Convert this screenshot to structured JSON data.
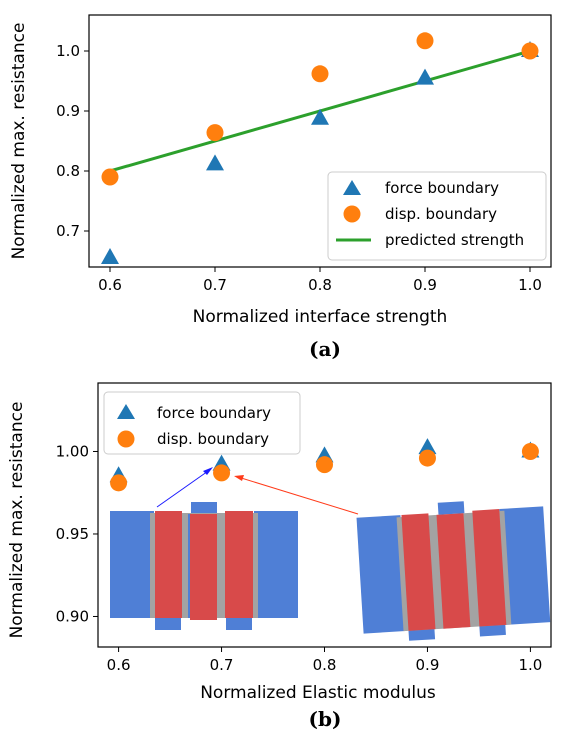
{
  "colors": {
    "force": "#1f77b4",
    "disp": "#ff7f0e",
    "line": "#2ca02c",
    "block_blue": "#4f7fd6",
    "block_red": "#d84a4a",
    "block_gray": "#a3a3a3",
    "arrow_blue": "#1a1aff",
    "arrow_red": "#ff3b1a"
  },
  "chart_data": [
    {
      "type": "scatter",
      "panel_label": "(a)",
      "xlabel": "Normalized interface strength",
      "ylabel": "Normalized max. resistance",
      "xlim": [
        0.58,
        1.02
      ],
      "ylim": [
        0.64,
        1.06
      ],
      "xticks": [
        "0.6",
        "0.7",
        "0.8",
        "0.9",
        "1.0"
      ],
      "xtick_values": [
        0.6,
        0.7,
        0.8,
        0.9,
        1.0
      ],
      "yticks": [
        "0.7",
        "0.8",
        "0.9",
        "1.0"
      ],
      "ytick_values": [
        0.7,
        0.8,
        0.9,
        1.0
      ],
      "legend_position": "lower-right",
      "series": [
        {
          "name": "force boundary",
          "marker": "triangle",
          "x": [
            0.6,
            0.7,
            0.8,
            0.9,
            1.0
          ],
          "y": [
            0.655,
            0.811,
            0.887,
            0.954,
            1.0
          ]
        },
        {
          "name": "disp. boundary",
          "marker": "circle",
          "x": [
            0.6,
            0.7,
            0.8,
            0.9,
            1.0
          ],
          "y": [
            0.79,
            0.864,
            0.962,
            1.017,
            1.0
          ]
        },
        {
          "name": "predicted strength",
          "marker": "line",
          "x": [
            0.6,
            1.0
          ],
          "y": [
            0.8,
            1.0
          ]
        }
      ]
    },
    {
      "type": "scatter",
      "panel_label": "(b)",
      "xlabel": "Normalized Elastic modulus",
      "ylabel": "Normalized max. resistance",
      "xlim": [
        0.58,
        1.02
      ],
      "ylim": [
        0.8815,
        1.0415
      ],
      "xticks": [
        "0.6",
        "0.7",
        "0.8",
        "0.9",
        "1.0"
      ],
      "xtick_values": [
        0.6,
        0.7,
        0.8,
        0.9,
        1.0
      ],
      "yticks": [
        "0.90",
        "0.95",
        "1.00"
      ],
      "ytick_values": [
        0.9,
        0.95,
        1.0
      ],
      "legend_position": "top-left",
      "series": [
        {
          "name": "force boundary",
          "marker": "triangle",
          "x": [
            0.6,
            0.7,
            0.8,
            0.9,
            1.0
          ],
          "y": [
            0.985,
            0.992,
            0.997,
            1.002,
            1.0
          ]
        },
        {
          "name": "disp. boundary",
          "marker": "circle",
          "x": [
            0.6,
            0.7,
            0.8,
            0.9,
            1.0
          ],
          "y": [
            0.981,
            0.987,
            0.992,
            0.996,
            1.0
          ]
        }
      ]
    }
  ]
}
